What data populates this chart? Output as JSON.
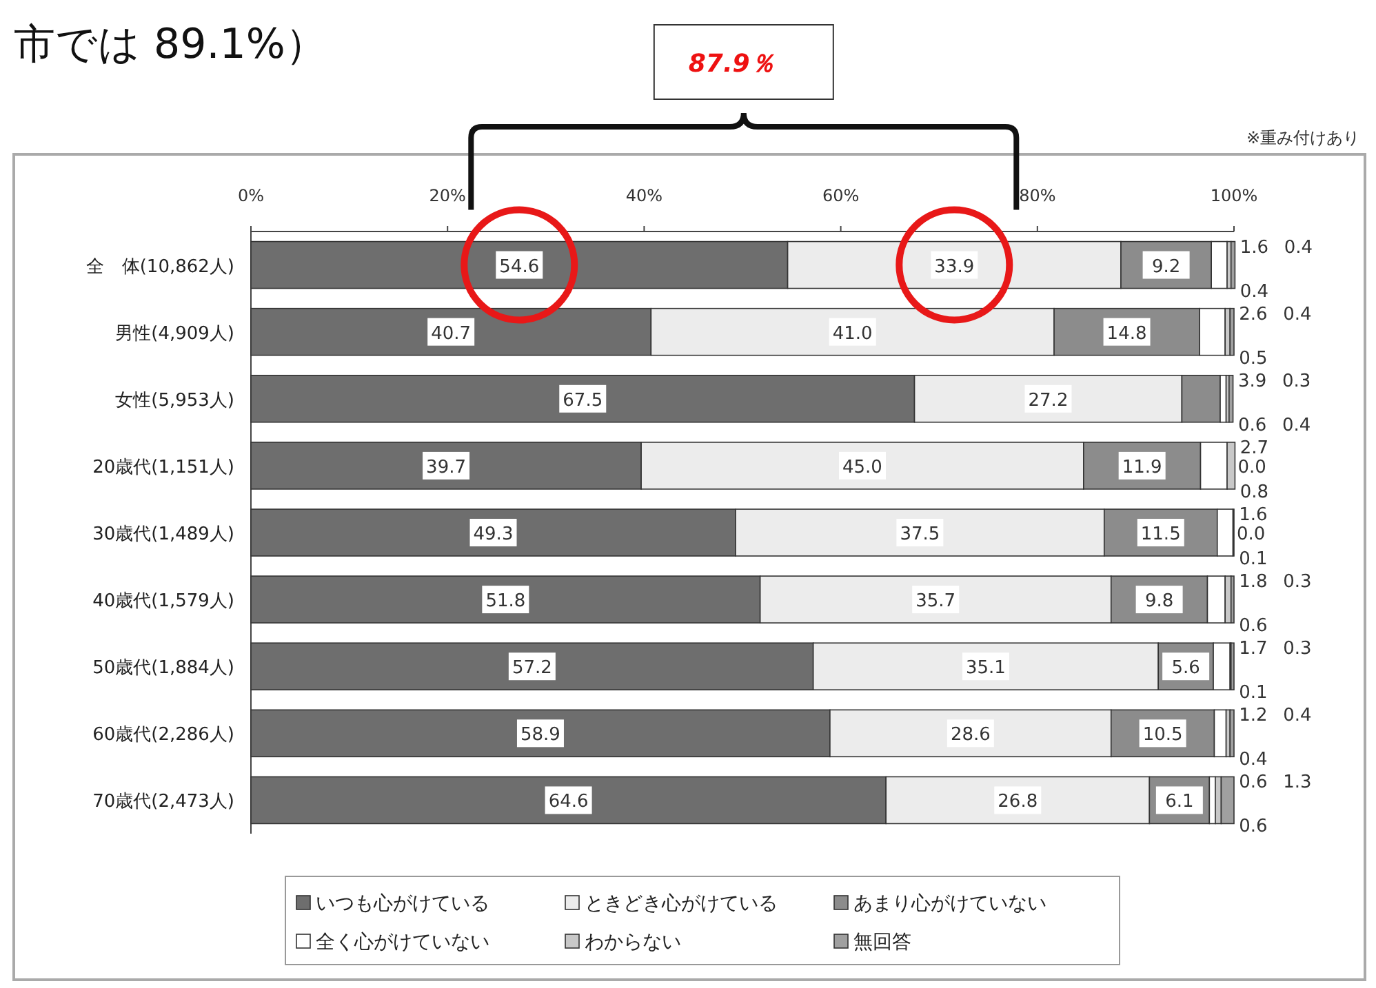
{
  "chart_data": {
    "type": "bar",
    "orientation": "horizontal",
    "stacked": true,
    "title": "市では 89.1%）",
    "annotations": [
      "87.9％",
      "※重み付けあり"
    ],
    "categories": [
      "全　体(10,862人)",
      "男性(4,909人)",
      "女性(5,953人)",
      "20歳代(1,151人)",
      "30歳代(1,489人)",
      "40歳代(1,579人)",
      "50歳代(1,884人)",
      "60歳代(2,286人)",
      "70歳代(2,473人)"
    ],
    "series": [
      {
        "name": "いつも心がけている",
        "color": "#6e6e6e",
        "values": [
          54.6,
          40.7,
          67.5,
          39.7,
          49.3,
          51.8,
          57.2,
          58.9,
          64.6
        ],
        "value_labels": [
          "54.6",
          "40.7",
          "67.5",
          "39.7",
          "49.3",
          "51.8",
          "57.2",
          "58.9",
          "64.6"
        ]
      },
      {
        "name": "ときどき心がけている",
        "color": "#ececec",
        "values": [
          33.9,
          41.0,
          27.2,
          45.0,
          37.5,
          35.7,
          35.1,
          28.6,
          26.8
        ],
        "value_labels": [
          "33.9",
          "41.0",
          "27.2",
          "45.0",
          "37.5",
          "35.7",
          "35.1",
          "28.6",
          "26.8"
        ]
      },
      {
        "name": "あまり心がけていない",
        "color": "#8c8c8c",
        "values": [
          9.2,
          14.8,
          3.9,
          11.9,
          11.5,
          9.8,
          5.6,
          10.5,
          6.1
        ],
        "value_labels": [
          "9.2",
          "14.8",
          "3.9",
          "11.9",
          "11.5",
          "9.8",
          "5.6",
          "10.5",
          "6.1"
        ]
      },
      {
        "name": "全く心がけていない",
        "color": "#ffffff",
        "values": [
          1.6,
          2.6,
          0.6,
          2.7,
          1.6,
          1.8,
          1.7,
          1.2,
          0.6
        ],
        "value_labels": [
          "1.6",
          "2.6",
          "0.6",
          "2.7",
          "1.6",
          "1.8",
          "1.7",
          "1.2",
          "0.6"
        ]
      },
      {
        "name": "わからない",
        "color": "#c8c8c8",
        "values": [
          0.4,
          0.5,
          0.3,
          0.8,
          0.1,
          0.6,
          0.1,
          0.4,
          0.6
        ],
        "value_labels": [
          "0.4",
          "0.5",
          "0.3",
          "0.8",
          "0.1",
          "0.6",
          "0.1",
          "0.4",
          "0.6"
        ]
      },
      {
        "name": "無回答",
        "color": "#a0a0a0",
        "values": [
          0.4,
          0.4,
          0.4,
          0.0,
          0.0,
          0.3,
          0.3,
          0.4,
          1.3
        ],
        "value_labels": [
          "0.4",
          "0.4",
          "0.4",
          "0.0",
          "0.0",
          "0.3",
          "0.3",
          "0.4",
          "1.3"
        ]
      }
    ],
    "xlim": [
      0,
      100
    ],
    "xticks": [
      {
        "value": 0,
        "label": "0%"
      },
      {
        "value": 20,
        "label": "20%"
      },
      {
        "value": 40,
        "label": "40%"
      },
      {
        "value": 60,
        "label": "60%"
      },
      {
        "value": 80,
        "label": "80%"
      },
      {
        "value": 100,
        "label": "100%"
      }
    ],
    "legend": "bottom",
    "grid": false
  }
}
